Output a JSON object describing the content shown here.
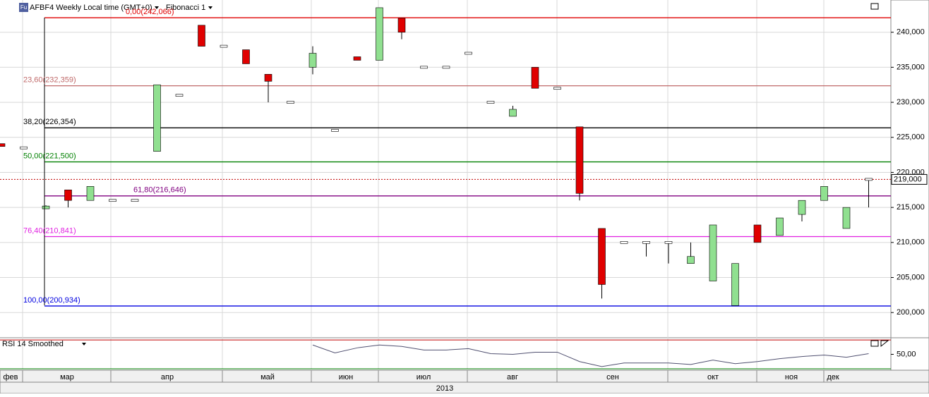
{
  "header": {
    "icon_label": "Fu",
    "title": "AFBF4 Weekly Local time (GMT+0)",
    "study": "Fibonacci 1"
  },
  "chart_data": [
    {
      "type": "candlestick",
      "open": [
        224100,
        223500,
        214800,
        217500,
        216000,
        216000,
        216000,
        223000,
        231000,
        241000,
        238000,
        237500,
        234000,
        230000,
        235000,
        226000,
        236500,
        236000,
        242000,
        235000,
        235000,
        237000,
        230000,
        228000,
        235000,
        232000,
        226500,
        212000,
        210000,
        210000,
        210000,
        207000,
        204500,
        201000,
        212500,
        211000,
        214000,
        216000,
        212000,
        219000
      ],
      "high": [
        224100,
        223500,
        215300,
        217500,
        218000,
        216000,
        216000,
        232500,
        231000,
        241000,
        238000,
        237500,
        234000,
        230000,
        238000,
        226000,
        236500,
        243500,
        242000,
        235000,
        235000,
        237000,
        230000,
        229500,
        235000,
        232000,
        226500,
        212000,
        210000,
        210000,
        210000,
        210000,
        212500,
        207000,
        212500,
        213500,
        216000,
        218000,
        215000,
        219000
      ],
      "low": [
        223700,
        223500,
        214800,
        215000,
        216000,
        216000,
        216000,
        223000,
        231000,
        238000,
        238000,
        235500,
        230000,
        230000,
        234000,
        226000,
        236000,
        236000,
        239000,
        235000,
        235000,
        237000,
        230000,
        228000,
        232000,
        232000,
        216000,
        202000,
        210000,
        208000,
        207000,
        207000,
        204500,
        201000,
        210000,
        211000,
        213000,
        216000,
        212000,
        215000
      ],
      "close": [
        223700,
        223500,
        215200,
        216000,
        218000,
        216000,
        216000,
        232500,
        231000,
        238000,
        238000,
        235500,
        233000,
        230000,
        237000,
        226000,
        236000,
        243500,
        240000,
        235000,
        235000,
        237000,
        230000,
        229000,
        232000,
        232000,
        217000,
        204000,
        210000,
        210000,
        210000,
        208000,
        212500,
        207000,
        210000,
        213500,
        216000,
        218000,
        215000,
        219000
      ],
      "up_color": "#90e090",
      "down_color": "#e00000",
      "ylim": [
        196500,
        244600
      ],
      "yticks": [
        {
          "value": 200000,
          "label": "200,000"
        },
        {
          "value": 205000,
          "label": "205,000"
        },
        {
          "value": 210000,
          "label": "210,000"
        },
        {
          "value": 215000,
          "label": "215,000"
        },
        {
          "value": 220000,
          "label": "220,000"
        },
        {
          "value": 225000,
          "label": "225,000"
        },
        {
          "value": 230000,
          "label": "230,000"
        },
        {
          "value": 235000,
          "label": "235,000"
        },
        {
          "value": 240000,
          "label": "240,000"
        }
      ],
      "grid": true,
      "fibonacci": [
        {
          "label": "0,00(242,066)",
          "value": 242066,
          "color": "#e00000"
        },
        {
          "label": "23,60(232,359)",
          "value": 232359,
          "color": "#c06a6a"
        },
        {
          "label": "38,20(226,354)",
          "value": 226354,
          "color": "#000000"
        },
        {
          "label": "50,00(221,500)",
          "value": 221500,
          "color": "#008000"
        },
        {
          "label": "61,80(216,646)",
          "value": 216646,
          "color": "#800080"
        },
        {
          "label": "76,40(210,841)",
          "value": 210841,
          "color": "#e020e0"
        },
        {
          "label": "100,00(200,934)",
          "value": 200934,
          "color": "#0000e0"
        }
      ],
      "last_price": {
        "value": 219000,
        "label": "219,000",
        "color": "#c00000"
      },
      "x_labels": [
        "фев",
        "мар",
        "апр",
        "май",
        "июн",
        "июл",
        "авг",
        "сен",
        "окт",
        "ноя",
        "дек"
      ],
      "year": "2013"
    },
    {
      "type": "line",
      "title": "RSI 14 Smoothed",
      "values": [
        null,
        null,
        null,
        null,
        null,
        null,
        null,
        null,
        null,
        null,
        null,
        null,
        null,
        null,
        63,
        52,
        59,
        63,
        61,
        56,
        56,
        58,
        51,
        50,
        53,
        53,
        40,
        33,
        38,
        38,
        38,
        36,
        42,
        37,
        40,
        44,
        47,
        49,
        46,
        51
      ],
      "color": "#505070",
      "ylim": [
        28,
        73
      ],
      "yticks": [
        {
          "value": 50,
          "label": "50,00"
        }
      ],
      "levels": [
        {
          "value": 70,
          "color": "#c00000"
        },
        {
          "value": 30,
          "color": "#008000"
        }
      ]
    }
  ]
}
